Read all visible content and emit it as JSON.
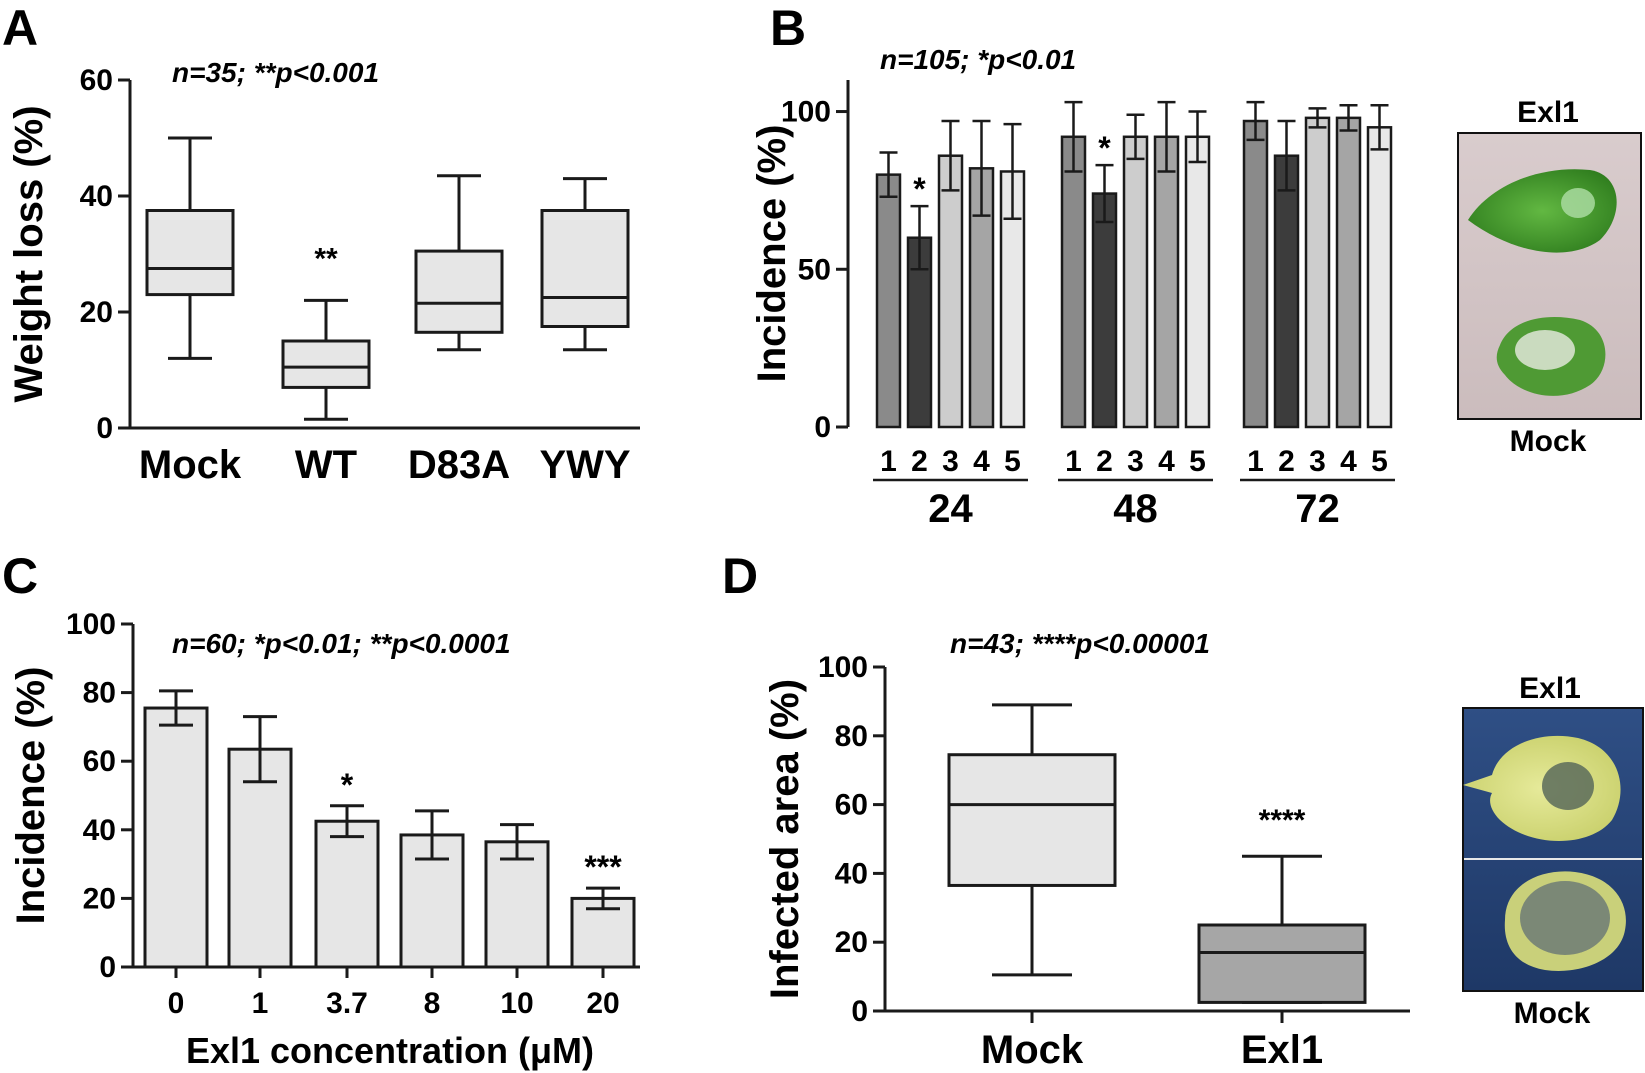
{
  "panels": {
    "A": {
      "letter": "A",
      "stats": "n=35; **p<0.001",
      "chart_data": {
        "type": "box",
        "ylabel": "Weight loss (%)",
        "ylim": [
          0,
          60
        ],
        "yticks": [
          0,
          20,
          40,
          60
        ],
        "categories": [
          "Mock",
          "WT",
          "D83A",
          "YWY"
        ],
        "boxes": [
          {
            "min": 12,
            "q1": 23,
            "median": 27.5,
            "q3": 37.5,
            "max": 50,
            "sig": ""
          },
          {
            "min": 1.5,
            "q1": 7,
            "median": 10.5,
            "q3": 15,
            "max": 22,
            "sig": "**"
          },
          {
            "min": 13.5,
            "q1": 16.5,
            "median": 21.5,
            "q3": 30.5,
            "max": 43.5,
            "sig": ""
          },
          {
            "min": 13.5,
            "q1": 17.5,
            "median": 22.5,
            "q3": 37.5,
            "max": 43,
            "sig": ""
          }
        ]
      }
    },
    "B": {
      "letter": "B",
      "stats": "n=105; *p<0.01",
      "chart_data": {
        "type": "bar",
        "ylabel": "Incidence (%)",
        "ylim": [
          0,
          110
        ],
        "yticks": [
          0,
          50,
          100
        ],
        "groups": [
          {
            "label": "24",
            "bars": [
              {
                "label": "1",
                "value": 80,
                "err": 7,
                "color": "#8a8a8a",
                "sig": ""
              },
              {
                "label": "2",
                "value": 60,
                "err": 10,
                "color": "#3c3c3c",
                "sig": "*"
              },
              {
                "label": "3",
                "value": 86,
                "err": 11,
                "color": "#cdcdcd",
                "sig": ""
              },
              {
                "label": "4",
                "value": 82,
                "err": 15,
                "color": "#a5a5a5",
                "sig": ""
              },
              {
                "label": "5",
                "value": 81,
                "err": 15,
                "color": "#e8e8e8",
                "sig": ""
              }
            ]
          },
          {
            "label": "48",
            "bars": [
              {
                "label": "1",
                "value": 92,
                "err": 11,
                "color": "#8a8a8a",
                "sig": ""
              },
              {
                "label": "2",
                "value": 74,
                "err": 9,
                "color": "#3c3c3c",
                "sig": "*"
              },
              {
                "label": "3",
                "value": 92,
                "err": 7,
                "color": "#cdcdcd",
                "sig": ""
              },
              {
                "label": "4",
                "value": 92,
                "err": 11,
                "color": "#a5a5a5",
                "sig": ""
              },
              {
                "label": "5",
                "value": 92,
                "err": 8,
                "color": "#e8e8e8",
                "sig": ""
              }
            ]
          },
          {
            "label": "72",
            "bars": [
              {
                "label": "1",
                "value": 97,
                "err": 6,
                "color": "#8a8a8a",
                "sig": ""
              },
              {
                "label": "2",
                "value": 86,
                "err": 11,
                "color": "#3c3c3c",
                "sig": ""
              },
              {
                "label": "3",
                "value": 98,
                "err": 3,
                "color": "#cdcdcd",
                "sig": ""
              },
              {
                "label": "4",
                "value": 98,
                "err": 4,
                "color": "#a5a5a5",
                "sig": ""
              },
              {
                "label": "5",
                "value": 95,
                "err": 7,
                "color": "#e8e8e8",
                "sig": ""
              }
            ]
          }
        ]
      },
      "photo": {
        "top_label": "Exl1",
        "bottom_label": "Mock"
      }
    },
    "C": {
      "letter": "C",
      "stats": "n=60; *p<0.01; **p<0.0001",
      "chart_data": {
        "type": "bar",
        "ylabel": "Incidence (%)",
        "xlabel": "Exl1 concentration (μM)",
        "ylim": [
          0,
          100
        ],
        "yticks": [
          0,
          20,
          40,
          60,
          80,
          100
        ],
        "categories": [
          "0",
          "1",
          "3.7",
          "8",
          "10",
          "20"
        ],
        "values": [
          75.5,
          63.5,
          42.5,
          38.5,
          36.5,
          20
        ],
        "errors": [
          5,
          9.5,
          4.5,
          7,
          5,
          3
        ],
        "sig": [
          "",
          "",
          "*",
          "",
          "",
          "***"
        ]
      }
    },
    "D": {
      "letter": "D",
      "stats": "n=43; ****p<0.00001",
      "chart_data": {
        "type": "box",
        "ylabel": "Infected area (%)",
        "ylim": [
          0,
          100
        ],
        "yticks": [
          0,
          20,
          40,
          60,
          80,
          100
        ],
        "categories": [
          "Mock",
          "Exl1"
        ],
        "boxes": [
          {
            "min": 10.5,
            "q1": 36.5,
            "median": 60,
            "q3": 74.5,
            "max": 89,
            "sig": "",
            "fill": "#e6e6e6"
          },
          {
            "min": 2.5,
            "q1": 2.5,
            "median": 17,
            "q3": 25,
            "max": 45,
            "sig": "****",
            "fill": "#a6a6a6"
          }
        ]
      },
      "photo": {
        "top_label": "Exl1",
        "bottom_label": "Mock"
      }
    }
  }
}
